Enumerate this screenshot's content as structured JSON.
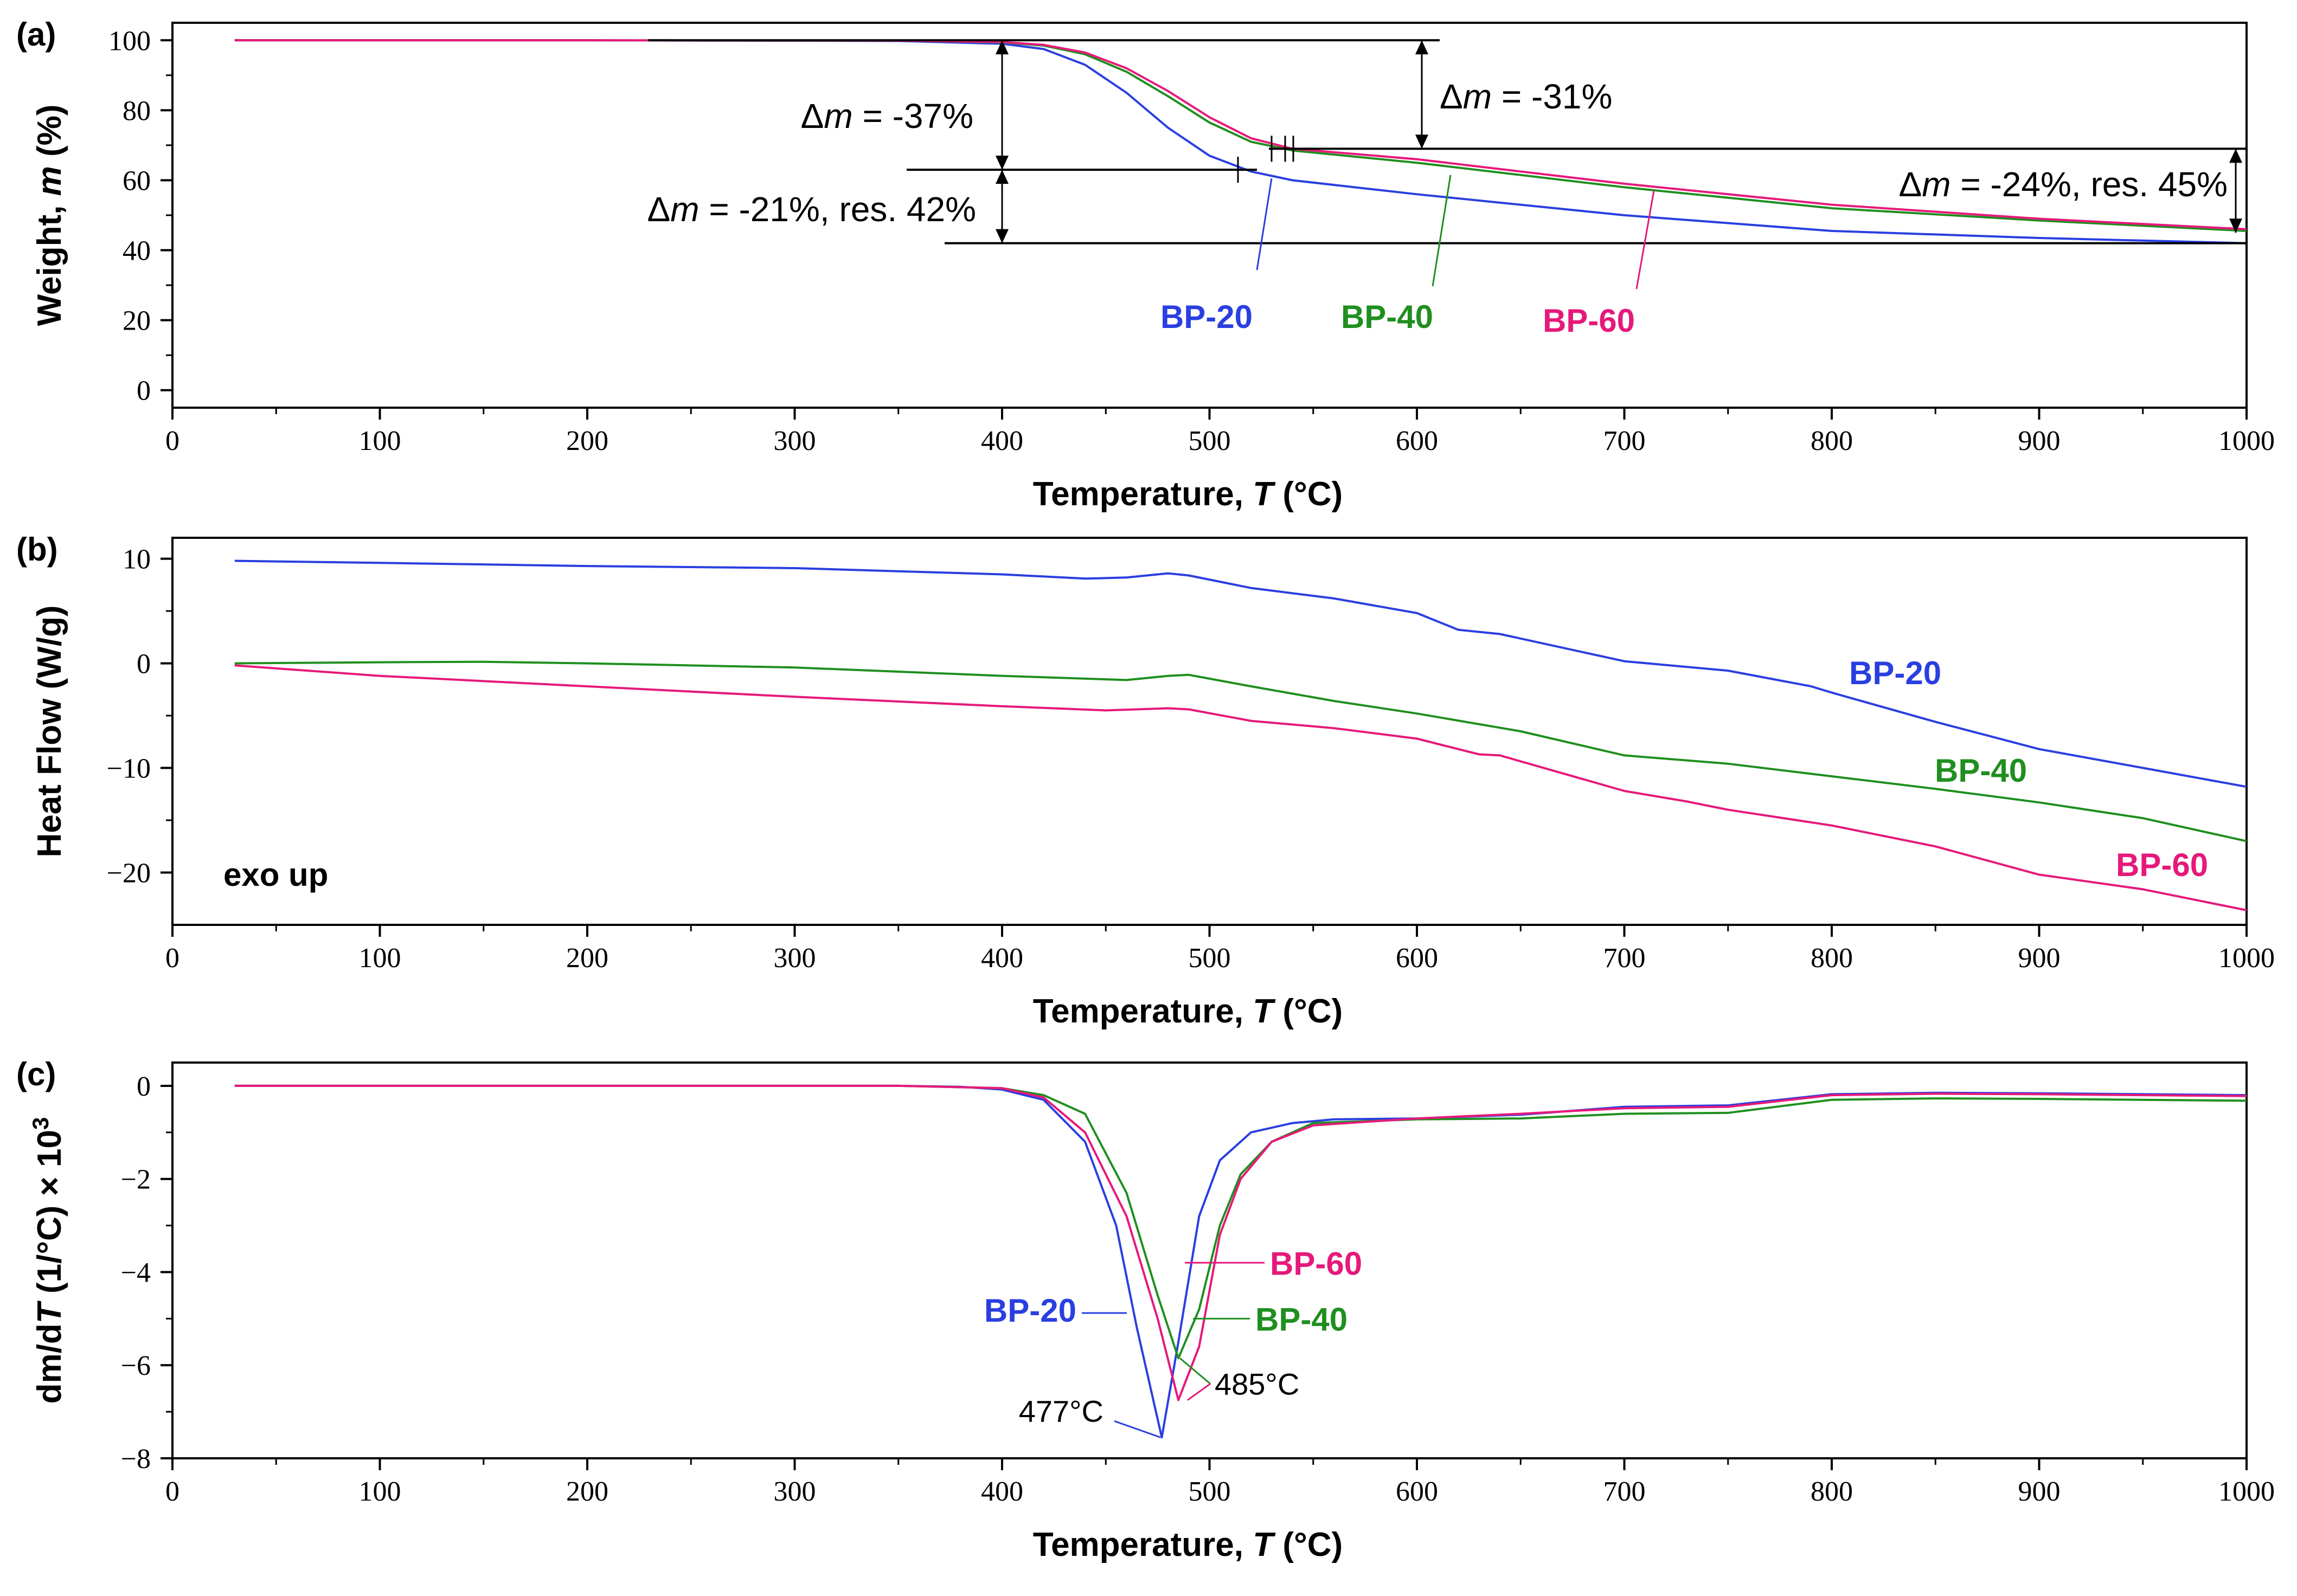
{
  "colors": {
    "BP-20": "#2a3fe0",
    "BP-40": "#1f8f1f",
    "BP-60": "#e6197a",
    "axis": "#000000"
  },
  "chart_data": [
    {
      "panel": "(a)",
      "type": "line",
      "xlabel_prefix": "Temperature, ",
      "xlabel_var": "T",
      "xlabel_suffix": " (°C)",
      "ylabel_prefix": "Weight, ",
      "ylabel_var": "m",
      "ylabel_suffix": " (%)",
      "xlim": [
        0,
        1000
      ],
      "ylim": [
        -5,
        105
      ],
      "xticks": [
        0,
        100,
        200,
        300,
        400,
        500,
        600,
        700,
        800,
        900,
        1000
      ],
      "yticks": [
        0,
        20,
        40,
        60,
        80,
        100
      ],
      "series": [
        {
          "name": "BP-20",
          "x": [
            30,
            200,
            350,
            400,
            420,
            440,
            460,
            480,
            500,
            520,
            540,
            600,
            700,
            800,
            900,
            1000
          ],
          "y": [
            100,
            100,
            99.8,
            99,
            97.5,
            93,
            85,
            75,
            67,
            62.5,
            60,
            56,
            50,
            45.5,
            43.5,
            42
          ]
        },
        {
          "name": "BP-40",
          "x": [
            30,
            200,
            350,
            400,
            420,
            440,
            460,
            480,
            500,
            520,
            540,
            600,
            700,
            800,
            900,
            1000
          ],
          "y": [
            100,
            100,
            99.9,
            99.4,
            98.5,
            96,
            91,
            84,
            76.5,
            71,
            68.5,
            65,
            58,
            52,
            48.5,
            45.5
          ]
        },
        {
          "name": "BP-60",
          "x": [
            30,
            200,
            350,
            400,
            420,
            440,
            460,
            480,
            500,
            520,
            540,
            600,
            700,
            800,
            900,
            1000
          ],
          "y": [
            100,
            100,
            99.9,
            99.5,
            98.7,
            96.5,
            92,
            85.5,
            78,
            72,
            69,
            66,
            59,
            53,
            49,
            46
          ]
        }
      ],
      "annotations": {
        "dm37": {
          "prefix": "Δ",
          "var": "m",
          "rest": " = -37%"
        },
        "dm31": {
          "prefix": "Δ",
          "var": "m",
          "rest": " = -31%"
        },
        "dm21": {
          "prefix": "Δ",
          "var": "m",
          "rest": " = -21%, res. 42%"
        },
        "dm24": {
          "prefix": "Δ",
          "var": "m",
          "rest": " = -24%, res. 45%"
        }
      },
      "labels": [
        "BP-20",
        "BP-40",
        "BP-60"
      ]
    },
    {
      "panel": "(b)",
      "type": "line",
      "xlabel_prefix": "Temperature, ",
      "xlabel_var": "T",
      "xlabel_suffix": " (°C)",
      "ylabel": "Heat Flow (W/g)",
      "xlim": [
        0,
        1000
      ],
      "ylim": [
        -25,
        12
      ],
      "xticks": [
        0,
        100,
        200,
        300,
        400,
        500,
        600,
        700,
        800,
        900,
        1000
      ],
      "yticks": [
        -20,
        -10,
        0,
        10
      ],
      "annotation": "exo up",
      "series": [
        {
          "name": "BP-20",
          "x": [
            30,
            100,
            200,
            300,
            400,
            440,
            460,
            480,
            490,
            520,
            560,
            600,
            620,
            640,
            700,
            750,
            790,
            800,
            850,
            900,
            950,
            1000
          ],
          "y": [
            9.8,
            9.6,
            9.3,
            9.1,
            8.5,
            8.1,
            8.2,
            8.6,
            8.4,
            7.2,
            6.2,
            4.8,
            3.2,
            2.8,
            0.2,
            -0.7,
            -2.2,
            -2.8,
            -5.6,
            -8.2,
            -10.0,
            -11.8
          ]
        },
        {
          "name": "BP-40",
          "x": [
            30,
            100,
            150,
            200,
            300,
            400,
            460,
            480,
            490,
            520,
            560,
            600,
            650,
            700,
            750,
            800,
            850,
            900,
            950,
            1000
          ],
          "y": [
            0,
            0.1,
            0.15,
            0,
            -0.4,
            -1.2,
            -1.6,
            -1.2,
            -1.1,
            -2.2,
            -3.6,
            -4.8,
            -6.5,
            -8.8,
            -9.6,
            -10.8,
            -12.0,
            -13.3,
            -14.8,
            -17.0
          ]
        },
        {
          "name": "BP-60",
          "x": [
            30,
            100,
            200,
            300,
            400,
            450,
            480,
            490,
            520,
            560,
            600,
            630,
            640,
            700,
            730,
            750,
            800,
            850,
            900,
            950,
            1000
          ],
          "y": [
            -0.2,
            -1.2,
            -2.2,
            -3.2,
            -4.1,
            -4.5,
            -4.3,
            -4.4,
            -5.5,
            -6.2,
            -7.2,
            -8.7,
            -8.8,
            -12.2,
            -13.2,
            -14.0,
            -15.5,
            -17.5,
            -20.2,
            -21.6,
            -23.6
          ]
        }
      ],
      "labels": [
        "BP-20",
        "BP-40",
        "BP-60"
      ]
    },
    {
      "panel": "(c)",
      "type": "line",
      "xlabel_prefix": "Temperature, ",
      "xlabel_var": "T",
      "xlabel_suffix": " (°C)",
      "ylabel_prefix": "dm/d",
      "ylabel_var": "T",
      "ylabel_suffix": " (1/°C) × 10",
      "ylabel_sup": "3",
      "xlim": [
        0,
        1000
      ],
      "ylim": [
        -8,
        0.5
      ],
      "xticks": [
        0,
        100,
        200,
        300,
        400,
        500,
        600,
        700,
        800,
        900,
        1000
      ],
      "yticks": [
        -8,
        -6,
        -4,
        -2,
        0
      ],
      "series": [
        {
          "name": "BP-20",
          "x": [
            30,
            350,
            380,
            400,
            420,
            440,
            455,
            465,
            477,
            485,
            495,
            505,
            520,
            540,
            560,
            600,
            650,
            700,
            750,
            800,
            850,
            900,
            950,
            1000
          ],
          "y": [
            0,
            0,
            -0.02,
            -0.08,
            -0.3,
            -1.2,
            -3.0,
            -5.2,
            -7.55,
            -5.5,
            -2.8,
            -1.6,
            -1.0,
            -0.8,
            -0.72,
            -0.7,
            -0.62,
            -0.45,
            -0.42,
            -0.18,
            -0.15,
            -0.16,
            -0.18,
            -0.2
          ]
        },
        {
          "name": "BP-40",
          "x": [
            30,
            350,
            400,
            420,
            440,
            460,
            475,
            485,
            495,
            505,
            515,
            530,
            550,
            600,
            650,
            700,
            750,
            800,
            850,
            900,
            950,
            1000
          ],
          "y": [
            0,
            0,
            -0.05,
            -0.2,
            -0.6,
            -2.3,
            -4.5,
            -5.85,
            -4.8,
            -3.0,
            -1.9,
            -1.2,
            -0.8,
            -0.72,
            -0.7,
            -0.6,
            -0.58,
            -0.3,
            -0.27,
            -0.28,
            -0.3,
            -0.32
          ]
        },
        {
          "name": "BP-60",
          "x": [
            30,
            350,
            400,
            420,
            440,
            460,
            475,
            485,
            495,
            505,
            515,
            530,
            550,
            600,
            650,
            700,
            750,
            800,
            850,
            900,
            950,
            1000
          ],
          "y": [
            0,
            0,
            -0.05,
            -0.25,
            -1.0,
            -2.8,
            -5.0,
            -6.75,
            -5.6,
            -3.2,
            -2.0,
            -1.2,
            -0.85,
            -0.7,
            -0.6,
            -0.48,
            -0.45,
            -0.2,
            -0.17,
            -0.18,
            -0.2,
            -0.22
          ]
        }
      ],
      "labels": [
        "BP-20",
        "BP-40",
        "BP-60"
      ],
      "peak_labels": [
        "477°C",
        "485°C"
      ]
    }
  ]
}
